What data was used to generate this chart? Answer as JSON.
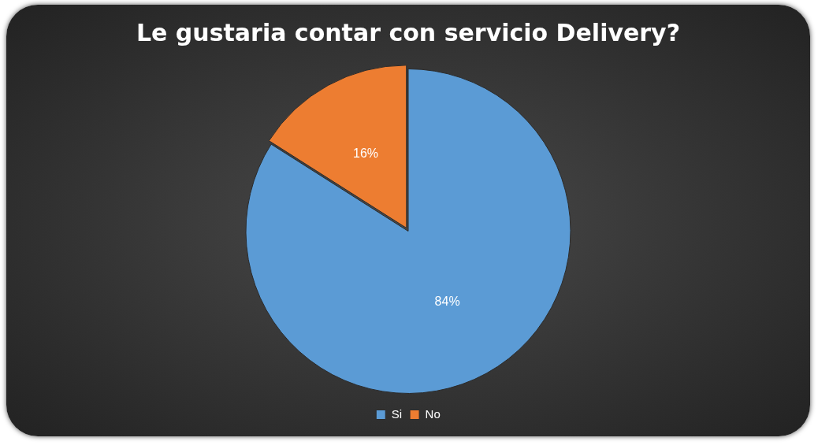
{
  "chart_data": {
    "type": "pie",
    "title": "Le gustaria contar con servicio Delivery?",
    "categories": [
      "Si",
      "No"
    ],
    "values": [
      84,
      16
    ],
    "colors": [
      "#5b9bd5",
      "#ed7d31"
    ],
    "value_labels": [
      "84%",
      "16%"
    ],
    "legend": "bottom"
  }
}
